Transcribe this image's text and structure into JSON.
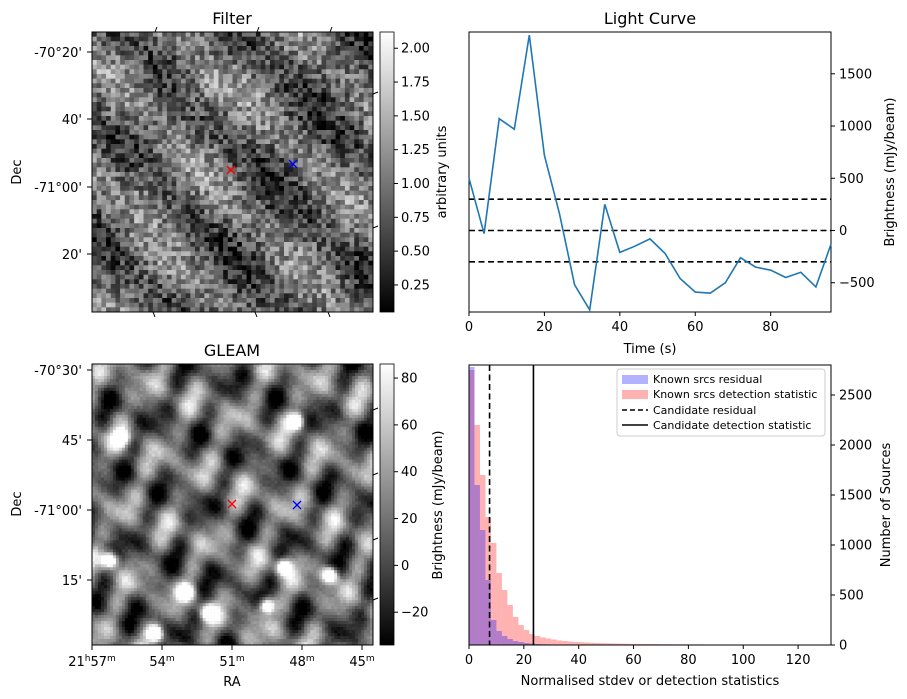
{
  "chart_data": [
    {
      "panel": "filter",
      "type": "heatmap",
      "title": "Filter",
      "xlabel": "",
      "ylabel": "Dec",
      "yticks": [
        "-70°20'",
        "40'",
        "-71°00'",
        "20'"
      ],
      "colorbar": {
        "label": "arbitrary units",
        "ticks": [
          "0.25",
          "0.50",
          "0.75",
          "1.00",
          "1.25",
          "1.50",
          "1.75",
          "2.00"
        ],
        "range": [
          0.05,
          2.12
        ]
      },
      "markers": [
        {
          "color": "#ff0000",
          "symbol": "x"
        },
        {
          "color": "#0000ff",
          "symbol": "x"
        }
      ]
    },
    {
      "panel": "light_curve",
      "type": "line",
      "title": "Light Curve",
      "xlabel": "Time (s)",
      "ylabel": "Brightness (mJy/beam)",
      "xlim": [
        0,
        96
      ],
      "ylim": [
        -780,
        1900
      ],
      "xticks": [
        "0",
        "20",
        "40",
        "60",
        "80"
      ],
      "yticks": [
        "-500",
        "0",
        "500",
        "1000",
        "1500"
      ],
      "x": [
        0,
        4,
        8,
        12,
        16,
        20,
        24,
        28,
        32,
        36,
        40,
        44,
        48,
        52,
        56,
        60,
        64,
        68,
        72,
        76,
        80,
        84,
        88,
        92,
        96
      ],
      "y": [
        500,
        -30,
        1070,
        970,
        1870,
        720,
        160,
        -520,
        -760,
        250,
        -210,
        -150,
        -80,
        -220,
        -460,
        -590,
        -600,
        -500,
        -260,
        -350,
        -380,
        -450,
        -400,
        -540,
        -130
      ],
      "hlines": [
        300,
        0,
        -300
      ],
      "color": "#1f77b4"
    },
    {
      "panel": "gleam",
      "type": "heatmap",
      "title": "GLEAM",
      "xlabel": "RA",
      "ylabel": "Dec",
      "xticks": [
        "21h57m",
        "54m",
        "51m",
        "48m",
        "45m"
      ],
      "yticks": [
        "-70°30'",
        "45'",
        "-71°00'",
        "15'"
      ],
      "colorbar": {
        "label": "Brightness (mJy/beam)",
        "ticks": [
          "−20",
          "0",
          "20",
          "40",
          "60",
          "80"
        ],
        "range": [
          -34,
          86
        ]
      },
      "markers": [
        {
          "color": "#ff0000",
          "symbol": "x"
        },
        {
          "color": "#0000ff",
          "symbol": "x"
        }
      ]
    },
    {
      "panel": "histogram",
      "type": "bar",
      "title": "",
      "xlabel": "Normalised stdev or detection statistics",
      "ylabel": "Number of Sources",
      "xlim": [
        0,
        132
      ],
      "ylim": [
        0,
        2800
      ],
      "xticks": [
        "0",
        "20",
        "40",
        "60",
        "80",
        "100",
        "120"
      ],
      "yticks": [
        "0",
        "500",
        "1000",
        "1500",
        "2000",
        "2500"
      ],
      "bin_width": 2,
      "series": [
        {
          "name": "Known srcs residual",
          "color": "#0000ff",
          "alpha": 0.3,
          "values": [
            2780,
            1600,
            1150,
            650,
            250,
            140,
            90,
            60,
            40,
            30,
            20,
            15,
            10,
            8,
            6,
            5,
            4,
            3,
            2,
            2,
            1,
            1,
            1,
            1,
            1,
            0,
            0,
            0,
            0,
            0,
            0,
            0,
            0,
            0,
            0,
            0,
            0,
            0,
            0,
            0,
            0,
            0,
            0,
            0,
            0,
            0,
            0,
            0,
            0,
            0,
            0,
            0,
            0,
            0,
            0,
            0,
            0,
            0,
            0,
            0,
            0,
            0,
            0,
            0,
            0,
            0
          ]
        },
        {
          "name": "Known srcs detection statistic",
          "color": "#ff0000",
          "alpha": 0.3,
          "values": [
            2750,
            2200,
            1700,
            1280,
            1020,
            720,
            550,
            400,
            280,
            200,
            150,
            110,
            90,
            75,
            65,
            55,
            45,
            40,
            35,
            30,
            28,
            25,
            22,
            20,
            18,
            17,
            15,
            14,
            13,
            12,
            11,
            10,
            10,
            9,
            9,
            8,
            8,
            7,
            7,
            7,
            6,
            6,
            6,
            5,
            5,
            5,
            5,
            4,
            4,
            4,
            4,
            4,
            3,
            3,
            3,
            3,
            3,
            3,
            2,
            2,
            2,
            2,
            2,
            2,
            2,
            2
          ]
        }
      ],
      "vlines": [
        {
          "name": "Candidate residual",
          "x": 7.5,
          "style": "dashed"
        },
        {
          "name": "Candidate detection statistic",
          "x": 23.5,
          "style": "solid"
        }
      ],
      "secondary_ylabel": "Brightness (mJy/beam)",
      "legend_position": "top-right"
    }
  ]
}
